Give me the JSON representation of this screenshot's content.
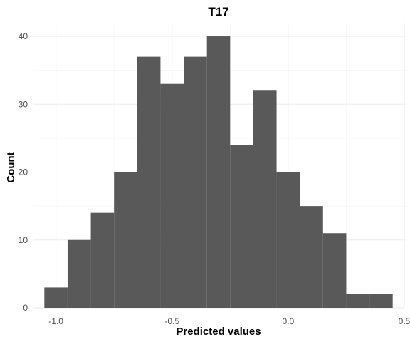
{
  "chart_data": {
    "type": "bar",
    "subtype": "histogram",
    "title": "T17",
    "xlabel": "Predicted values",
    "ylabel": "Count",
    "bin_edges": [
      -1.05,
      -0.95,
      -0.85,
      -0.75,
      -0.65,
      -0.55,
      -0.45,
      -0.35,
      -0.25,
      -0.15,
      -0.05,
      0.05,
      0.15,
      0.25,
      0.35,
      0.45
    ],
    "counts": [
      3,
      10,
      14,
      20,
      37,
      33,
      37,
      40,
      24,
      32,
      20,
      15,
      11,
      2,
      2
    ],
    "xlim": [
      -1.1,
      0.5
    ],
    "ylim": [
      0,
      42
    ],
    "x_ticks": [
      -1.0,
      -0.5,
      0.0,
      0.5
    ],
    "x_tick_labels": [
      "-1.0",
      "-0.5",
      "0.0",
      "0.5"
    ],
    "y_ticks": [
      0,
      10,
      20,
      30,
      40
    ],
    "y_tick_labels": [
      "0",
      "10",
      "20",
      "30",
      "40"
    ],
    "bar_color": "#595959",
    "grid": true,
    "legend": "none"
  }
}
